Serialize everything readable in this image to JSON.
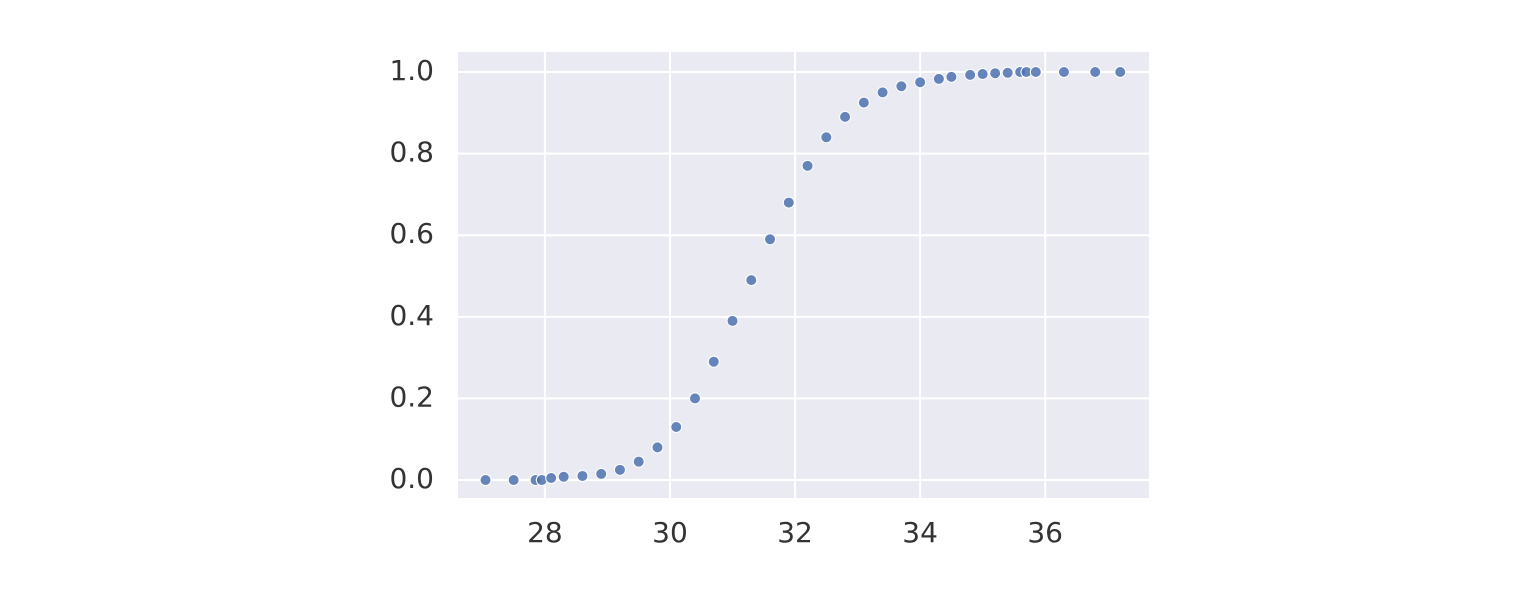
{
  "chart_data": {
    "type": "scatter",
    "x": [
      27.05,
      27.5,
      27.85,
      27.95,
      28.1,
      28.3,
      28.6,
      28.9,
      29.2,
      29.5,
      29.8,
      30.1,
      30.4,
      30.7,
      31.0,
      31.3,
      31.6,
      31.9,
      32.2,
      32.5,
      32.8,
      33.1,
      33.4,
      33.7,
      34.0,
      34.3,
      34.5,
      34.8,
      35.0,
      35.2,
      35.4,
      35.6,
      35.7,
      35.85,
      36.3,
      36.8,
      37.2
    ],
    "series": [
      {
        "color": "#4c72b0",
        "values": [
          0.0,
          0.0,
          0.0,
          0.0,
          0.005,
          0.008,
          0.01,
          0.015,
          0.025,
          0.045,
          0.08,
          0.13,
          0.2,
          0.29,
          0.39,
          0.49,
          0.59,
          0.68,
          0.77,
          0.84,
          0.89,
          0.925,
          0.95,
          0.965,
          0.975,
          0.983,
          0.988,
          0.993,
          0.995,
          0.997,
          0.998,
          1.0,
          1.0,
          1.0,
          1.0,
          1.0,
          1.0
        ]
      }
    ],
    "xlim": [
      26.61,
      37.66
    ],
    "ylim": [
      -0.044,
      1.049
    ],
    "xticks": [
      28,
      30,
      32,
      34,
      36
    ],
    "yticks": [
      {
        "value": 0,
        "label": "0.0"
      },
      0.2,
      0.4,
      0.6,
      0.8,
      {
        "value": 1,
        "label": "1.0"
      }
    ],
    "grid": true,
    "background": "#eaeaf2"
  }
}
